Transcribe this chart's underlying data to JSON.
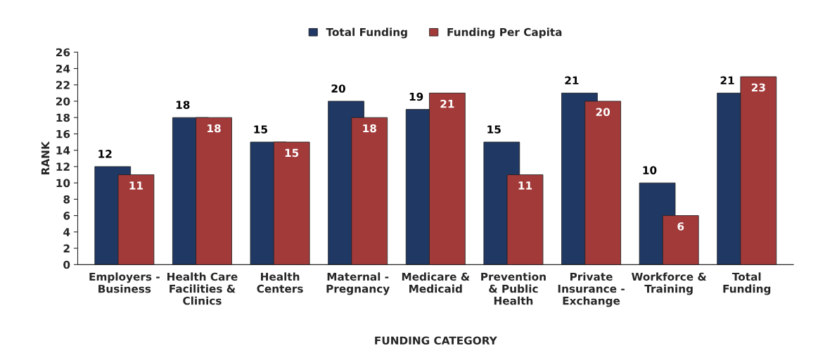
{
  "chart_data": {
    "type": "bar",
    "categories": [
      "Employers -\nBusiness",
      "Health Care\nFacilities &\nClinics",
      "Health\nCenters",
      "Maternal -\nPregnancy",
      "Medicare &\nMedicaid",
      "Prevention\n& Public\nHealth",
      "Private\nInsurance -\nExchange",
      "Workforce &\nTraining",
      "Total\nFunding"
    ],
    "series": [
      {
        "name": "Total Funding",
        "color": "#1f3864",
        "values": [
          12,
          18,
          15,
          20,
          19,
          15,
          21,
          10,
          21
        ]
      },
      {
        "name": "Funding Per Capita",
        "color": "#a33a3a",
        "values": [
          11,
          18,
          15,
          18,
          21,
          11,
          20,
          6,
          23
        ]
      }
    ],
    "xlabel": "FUNDING CATEGORY",
    "ylabel": "RANK",
    "ylim": [
      0,
      26
    ],
    "yticks": [
      0,
      2,
      4,
      6,
      8,
      10,
      12,
      14,
      16,
      18,
      20,
      22,
      24,
      26
    ],
    "data_labels": true,
    "legend": "top",
    "grid": false
  }
}
